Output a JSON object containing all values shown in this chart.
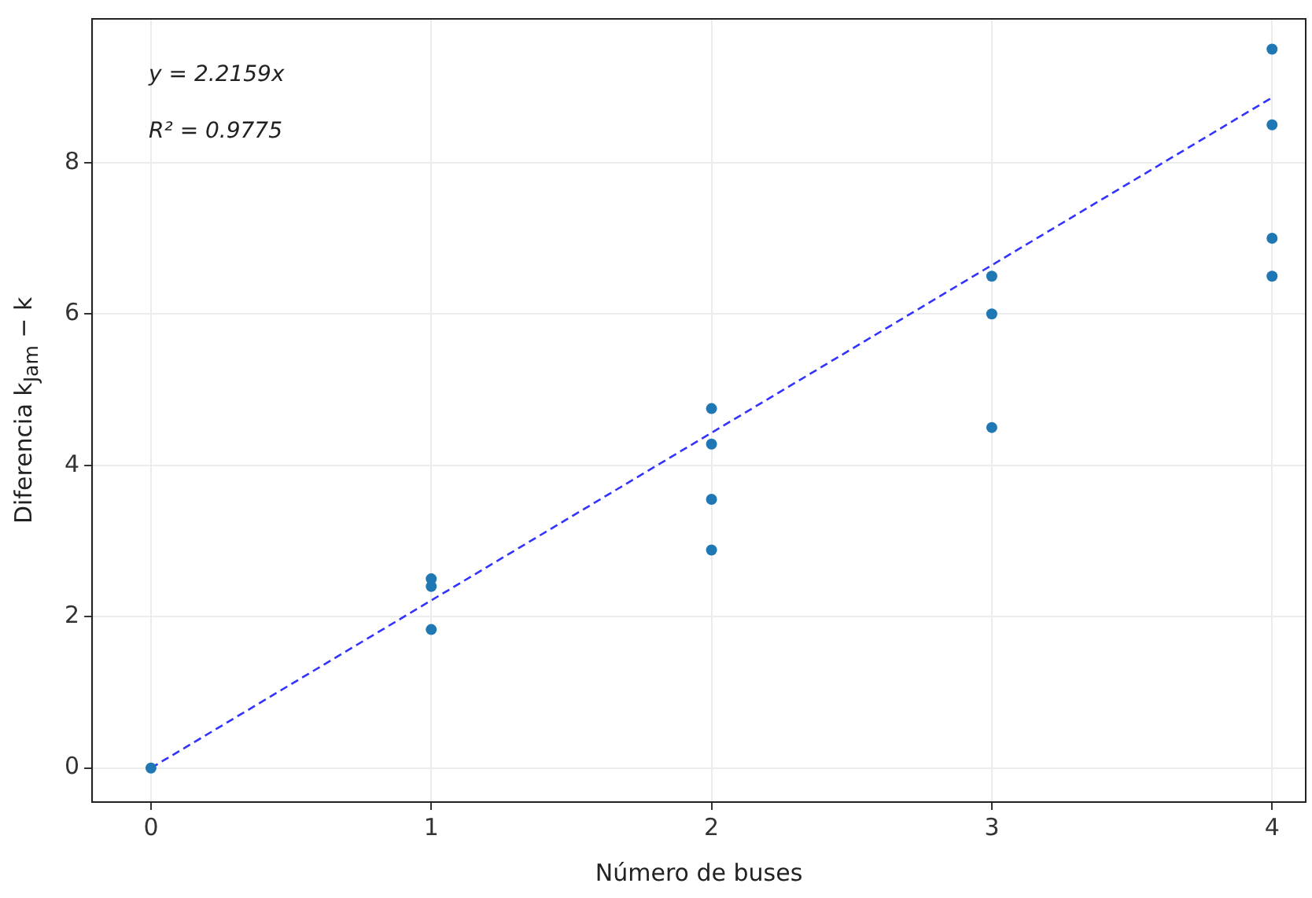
{
  "chart_data": {
    "type": "scatter",
    "xlabel": "Número de buses",
    "ylabel": "Diferencia k$_{Jam}$ − k",
    "annotations": [
      "y = 2.2159x",
      "R² = 0.9775"
    ],
    "series": [
      {
        "type": "scatter",
        "color": "#1f77b4",
        "x": [
          0,
          1,
          1,
          1,
          2,
          2,
          2,
          2,
          3,
          3,
          3,
          4,
          4,
          4,
          4
        ],
        "values": [
          0,
          2.5,
          2.4,
          1.83,
          4.75,
          4.28,
          3.55,
          2.88,
          6.5,
          6.0,
          4.5,
          9.5,
          8.5,
          7.0,
          6.5
        ],
        "marker": "circle"
      },
      {
        "type": "line",
        "color": "#3333ff",
        "x": [
          0,
          4
        ],
        "values": [
          0,
          8.86
        ],
        "line_style": "dashed",
        "marker": "none"
      }
    ],
    "xlim": [
      -0.21,
      4.12
    ],
    "ylim": [
      -0.45,
      9.9
    ],
    "xticks": [
      0,
      1,
      2,
      3,
      4
    ],
    "yticks": [
      0,
      2,
      4,
      6,
      8
    ],
    "grid": true,
    "legend": false
  }
}
